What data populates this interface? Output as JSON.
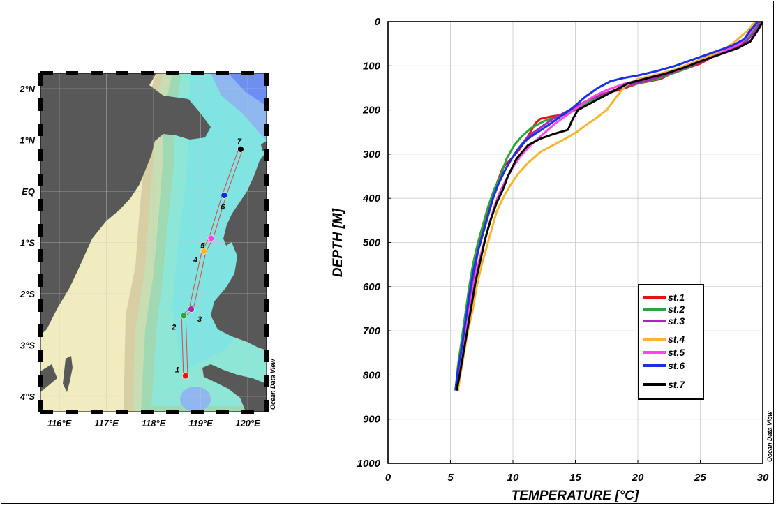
{
  "chart_data": [
    {
      "type": "map",
      "x_ticks": [
        "116°E",
        "117°E",
        "118°E",
        "119°E",
        "120°E"
      ],
      "y_ticks": [
        "2°N",
        "1°N",
        "EQ",
        "1°S",
        "2°S",
        "3°S",
        "4°S"
      ],
      "xlim": [
        115.6,
        120.4
      ],
      "ylim": [
        -4.3,
        2.3
      ],
      "credit": "Ocean Data View",
      "stations": [
        {
          "label": "1",
          "lon": 118.68,
          "lat": -3.6,
          "color": "#e8140c"
        },
        {
          "label": "2",
          "lon": 118.64,
          "lat": -2.43,
          "color": "#27a83a"
        },
        {
          "label": "3",
          "lon": 118.8,
          "lat": -2.3,
          "color": "#a525b5"
        },
        {
          "label": "4",
          "lon": 119.07,
          "lat": -1.17,
          "color": "#f8b62c"
        },
        {
          "label": "5",
          "lon": 119.22,
          "lat": -0.92,
          "color": "#ff44e6"
        },
        {
          "label": "6",
          "lon": 119.5,
          "lat": -0.08,
          "color": "#1428e8"
        },
        {
          "label": "7",
          "lon": 119.85,
          "lat": 0.82,
          "color": "#000000"
        }
      ],
      "track": [
        [
          118.68,
          -3.6
        ],
        [
          118.64,
          -2.43
        ],
        [
          118.8,
          -2.3
        ],
        [
          119.07,
          -1.17
        ],
        [
          119.22,
          -0.92
        ],
        [
          119.5,
          -0.08
        ],
        [
          119.85,
          0.82
        ]
      ]
    },
    {
      "type": "line",
      "xlabel": "TEMPERATURE [°C]",
      "ylabel": "DEPTH [M]",
      "xlim": [
        0,
        30
      ],
      "ylim": [
        1000,
        0
      ],
      "x_ticks": [
        "0",
        "5",
        "10",
        "15",
        "20",
        "25",
        "30"
      ],
      "y_ticks": [
        "0",
        "100",
        "200",
        "300",
        "400",
        "500",
        "600",
        "700",
        "800",
        "900",
        "1000"
      ],
      "grid": true,
      "legend_position": "bottom-right",
      "credit": "Ocean Data View",
      "series": [
        {
          "name": "st.1",
          "color": "#e8140c",
          "x": [
            29.9,
            29.5,
            28.8,
            27.5,
            26,
            25,
            23.5,
            22.5,
            21.8,
            20,
            18.5,
            17,
            16,
            15,
            14.2,
            13,
            12.2,
            11.8,
            11.2,
            10.5,
            9.9,
            9.2,
            8.8,
            8.3,
            7.9,
            7.5,
            7.1,
            6.8,
            6.5,
            6.2,
            5.9,
            5.7,
            5.6
          ],
          "y": [
            0,
            20,
            40,
            60,
            80,
            95,
            110,
            120,
            130,
            140,
            155,
            165,
            180,
            200,
            210,
            215,
            220,
            230,
            260,
            290,
            310,
            330,
            360,
            400,
            440,
            480,
            520,
            580,
            630,
            700,
            760,
            810,
            835
          ]
        },
        {
          "name": "st.2",
          "color": "#2aa63c",
          "x": [
            29.7,
            29.2,
            28.5,
            27.5,
            26.5,
            25,
            24,
            23,
            21.5,
            20,
            18.5,
            17.5,
            16.5,
            15.5,
            14.5,
            13.5,
            12.5,
            11.5,
            10.7,
            10.1,
            9.5,
            9,
            8.5,
            8,
            7.6,
            7.2,
            6.8,
            6.5,
            6.2,
            5.9,
            5.6,
            5.4
          ],
          "y": [
            0,
            25,
            45,
            60,
            75,
            90,
            105,
            115,
            130,
            140,
            150,
            165,
            175,
            190,
            205,
            215,
            225,
            240,
            260,
            280,
            310,
            350,
            380,
            420,
            460,
            500,
            550,
            600,
            660,
            720,
            780,
            835
          ]
        },
        {
          "name": "st.3",
          "color": "#a02ab3",
          "x": [
            29.8,
            29.4,
            28.7,
            27.6,
            26.2,
            25,
            23.8,
            22.5,
            21.2,
            19.8,
            18.6,
            17.2,
            16.2,
            15.2,
            14.2,
            13.2,
            12.2,
            11.2,
            10.5,
            9.9,
            9.3,
            8.8,
            8.4,
            8,
            7.6,
            7.2,
            6.9,
            6.6,
            6.3,
            6,
            5.7,
            5.5
          ],
          "y": [
            0,
            22,
            45,
            60,
            75,
            92,
            105,
            118,
            130,
            140,
            150,
            165,
            175,
            190,
            205,
            220,
            240,
            260,
            285,
            310,
            340,
            370,
            400,
            440,
            480,
            520,
            570,
            620,
            680,
            740,
            800,
            835
          ]
        },
        {
          "name": "st.4",
          "color": "#f7b52e",
          "x": [
            29.4,
            28.8,
            27.8,
            26.8,
            25.5,
            24.2,
            22.8,
            21.5,
            20,
            19,
            18.3,
            17.5,
            16.6,
            15.8,
            15.1,
            14.2,
            13.2,
            12.2,
            11.2,
            10.4,
            9.8,
            9.2,
            8.7,
            8.3,
            7.9,
            7.5,
            7.1,
            6.8,
            6.4,
            6.1,
            5.8,
            5.6
          ],
          "y": [
            0,
            20,
            45,
            65,
            80,
            95,
            110,
            120,
            130,
            145,
            170,
            200,
            220,
            235,
            250,
            265,
            280,
            295,
            320,
            345,
            370,
            400,
            430,
            470,
            510,
            550,
            600,
            650,
            700,
            750,
            800,
            835
          ]
        },
        {
          "name": "st.5",
          "color": "#ff45e8",
          "x": [
            29.6,
            29,
            28.2,
            27,
            26,
            24.5,
            23.2,
            21.8,
            20.5,
            19,
            17.5,
            16.4,
            15.4,
            14.4,
            13.4,
            12.4,
            11.4,
            10.6,
            10,
            9.4,
            8.9,
            8.5,
            8.1,
            7.7,
            7.3,
            6.9,
            6.6,
            6.3,
            6,
            5.7,
            5.5
          ],
          "y": [
            0,
            25,
            50,
            65,
            80,
            95,
            110,
            120,
            130,
            140,
            155,
            170,
            190,
            210,
            230,
            255,
            280,
            305,
            330,
            360,
            390,
            420,
            460,
            500,
            540,
            590,
            640,
            690,
            740,
            790,
            835
          ]
        },
        {
          "name": "st.6",
          "color": "#1830e8",
          "x": [
            29.6,
            29,
            28.5,
            27.5,
            26,
            24.5,
            23,
            21.5,
            20,
            18.8,
            17.8,
            16.8,
            15.8,
            14.8,
            13.8,
            12.8,
            12,
            11.2,
            10.5,
            9.9,
            9.3,
            8.8,
            8.4,
            8,
            7.6,
            7.2,
            6.8,
            6.5,
            6.2,
            5.9,
            5.6,
            5.4
          ],
          "y": [
            0,
            20,
            40,
            55,
            70,
            85,
            100,
            112,
            122,
            128,
            135,
            150,
            170,
            195,
            215,
            235,
            250,
            265,
            285,
            310,
            340,
            370,
            400,
            440,
            480,
            520,
            570,
            620,
            680,
            740,
            790,
            835
          ]
        },
        {
          "name": "st.7",
          "color": "#000000",
          "x": [
            30,
            29.6,
            29,
            28,
            26.5,
            25,
            23.6,
            22.2,
            20.8,
            19.2,
            18.2,
            17.2,
            16.2,
            15.2,
            14.8,
            14.4,
            13.2,
            12.2,
            11.2,
            10.3,
            9.6,
            9.2,
            8.7,
            8.2,
            7.8,
            7.4,
            7,
            6.7,
            6.4,
            6.1,
            5.8,
            5.5
          ],
          "y": [
            0,
            20,
            45,
            60,
            75,
            90,
            105,
            118,
            128,
            140,
            155,
            170,
            185,
            200,
            220,
            245,
            255,
            265,
            280,
            310,
            350,
            380,
            410,
            450,
            490,
            540,
            590,
            640,
            690,
            740,
            790,
            835
          ]
        }
      ]
    }
  ]
}
